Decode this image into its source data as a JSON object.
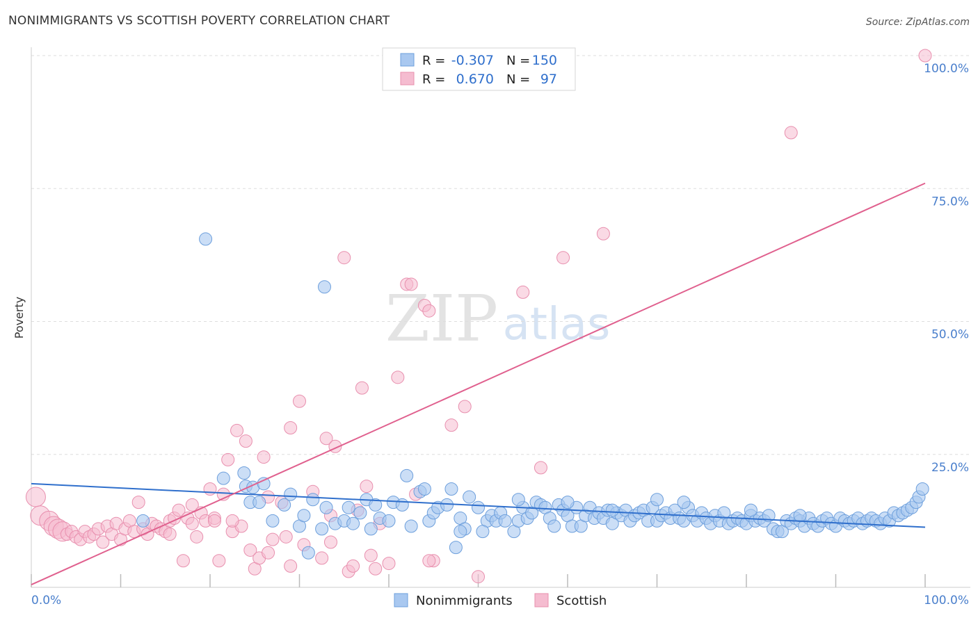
{
  "header": {
    "title": "NONIMMIGRANTS VS SCOTTISH POVERTY CORRELATION CHART",
    "source": "Source: ZipAtlas.com"
  },
  "watermark": {
    "zip": "ZIP",
    "atlas": "atlas"
  },
  "colors": {
    "blue_fill": "#a9c8f0",
    "blue_stroke": "#6d9fdc",
    "blue_line": "#2f6fcc",
    "pink_fill": "#f5bcd0",
    "pink_stroke": "#e88fae",
    "pink_line": "#e0608e",
    "axis_label": "#4a7fcc",
    "grid": "#dddddd"
  },
  "stats_legend": {
    "rows": [
      {
        "r_label": "R =",
        "r_value": "-0.307",
        "n_label": "N =",
        "n_value": "150"
      },
      {
        "r_label": "R =",
        "r_value": "0.670",
        "n_label": "N =",
        "n_value": "97"
      }
    ]
  },
  "chart_data": {
    "type": "scatter",
    "ylabel": "Poverty",
    "xlabel": "",
    "xlim": [
      0,
      100
    ],
    "ylim": [
      0,
      100
    ],
    "x_tick_labels": [
      "0.0%",
      "100.0%"
    ],
    "y_tick_labels": [
      {
        "value": 25,
        "label": "25.0%"
      },
      {
        "value": 50,
        "label": "50.0%"
      },
      {
        "value": 75,
        "label": "75.0%"
      },
      {
        "value": 100,
        "label": "100.0%"
      }
    ],
    "grid": true,
    "legend_position": "bottom-center",
    "series": [
      {
        "name": "Nonimmigrants",
        "color": "#a9c8f0",
        "trend": {
          "x": [
            0,
            100
          ],
          "y": [
            19.5,
            11.3
          ]
        },
        "points": [
          [
            19.5,
            65.5
          ],
          [
            32.8,
            56.5
          ],
          [
            21.5,
            20.5
          ],
          [
            23.8,
            21.5
          ],
          [
            24.0,
            19.0
          ],
          [
            24.5,
            16.0
          ],
          [
            24.8,
            18.8
          ],
          [
            25.5,
            16.0
          ],
          [
            26.0,
            19.5
          ],
          [
            27.0,
            12.5
          ],
          [
            28.3,
            15.5
          ],
          [
            29.0,
            17.5
          ],
          [
            30.0,
            11.5
          ],
          [
            30.5,
            13.5
          ],
          [
            31.5,
            16.5
          ],
          [
            32.5,
            11.0
          ],
          [
            33.0,
            15.0
          ],
          [
            34.0,
            12.0
          ],
          [
            35.0,
            12.5
          ],
          [
            35.5,
            15.0
          ],
          [
            36.0,
            12.0
          ],
          [
            36.8,
            14.0
          ],
          [
            37.5,
            16.5
          ],
          [
            38.0,
            11.0
          ],
          [
            38.5,
            15.5
          ],
          [
            39.0,
            13.0
          ],
          [
            40.0,
            12.5
          ],
          [
            40.5,
            16.0
          ],
          [
            41.5,
            15.5
          ],
          [
            42.0,
            21.0
          ],
          [
            42.5,
            11.5
          ],
          [
            43.5,
            18.0
          ],
          [
            44.0,
            18.5
          ],
          [
            44.5,
            12.5
          ],
          [
            45.0,
            14.0
          ],
          [
            45.5,
            15.0
          ],
          [
            46.5,
            15.5
          ],
          [
            47.0,
            18.5
          ],
          [
            47.5,
            7.5
          ],
          [
            48.0,
            13.0
          ],
          [
            48.5,
            11.0
          ],
          [
            49.0,
            17.0
          ],
          [
            50.0,
            15.0
          ],
          [
            51.0,
            12.5
          ],
          [
            51.5,
            13.5
          ],
          [
            52.0,
            12.5
          ],
          [
            52.5,
            14.0
          ],
          [
            53.0,
            12.5
          ],
          [
            54.0,
            10.5
          ],
          [
            54.5,
            12.5
          ],
          [
            55.0,
            15.0
          ],
          [
            55.5,
            13.0
          ],
          [
            56.0,
            14.0
          ],
          [
            56.5,
            16.0
          ],
          [
            57.0,
            15.5
          ],
          [
            57.5,
            15.0
          ],
          [
            58.0,
            13.0
          ],
          [
            58.5,
            11.5
          ],
          [
            59.0,
            15.5
          ],
          [
            59.5,
            14.5
          ],
          [
            60.0,
            13.5
          ],
          [
            60.5,
            11.5
          ],
          [
            61.0,
            15.0
          ],
          [
            61.5,
            11.5
          ],
          [
            62.0,
            13.5
          ],
          [
            62.5,
            15.0
          ],
          [
            63.0,
            13.0
          ],
          [
            63.5,
            14.0
          ],
          [
            64.0,
            13.0
          ],
          [
            64.5,
            14.5
          ],
          [
            65.0,
            12.0
          ],
          [
            65.5,
            14.0
          ],
          [
            66.0,
            13.5
          ],
          [
            66.5,
            14.5
          ],
          [
            67.0,
            12.5
          ],
          [
            67.5,
            13.5
          ],
          [
            68.0,
            14.0
          ],
          [
            68.5,
            14.5
          ],
          [
            69.0,
            12.5
          ],
          [
            69.5,
            15.0
          ],
          [
            70.0,
            12.5
          ],
          [
            70.5,
            13.5
          ],
          [
            71.0,
            14.0
          ],
          [
            71.5,
            13.0
          ],
          [
            72.0,
            14.5
          ],
          [
            72.5,
            13.0
          ],
          [
            73.0,
            12.5
          ],
          [
            73.5,
            15.0
          ],
          [
            74.0,
            13.5
          ],
          [
            74.5,
            12.5
          ],
          [
            75.0,
            14.0
          ],
          [
            75.5,
            13.0
          ],
          [
            76.0,
            12.0
          ],
          [
            76.5,
            13.5
          ],
          [
            77.0,
            12.5
          ],
          [
            77.5,
            14.0
          ],
          [
            78.0,
            12.0
          ],
          [
            78.5,
            12.5
          ],
          [
            79.0,
            13.0
          ],
          [
            79.5,
            12.5
          ],
          [
            80.0,
            12.0
          ],
          [
            80.5,
            13.5
          ],
          [
            81.0,
            12.5
          ],
          [
            81.5,
            13.0
          ],
          [
            82.0,
            12.5
          ],
          [
            82.5,
            13.5
          ],
          [
            83.0,
            11.0
          ],
          [
            83.5,
            10.5
          ],
          [
            84.0,
            10.5
          ],
          [
            84.5,
            12.5
          ],
          [
            85.0,
            12.0
          ],
          [
            85.5,
            13.0
          ],
          [
            86.0,
            12.5
          ],
          [
            86.5,
            11.5
          ],
          [
            87.0,
            13.0
          ],
          [
            87.5,
            12.0
          ],
          [
            88.0,
            11.5
          ],
          [
            88.5,
            12.5
          ],
          [
            89.0,
            13.0
          ],
          [
            89.5,
            12.0
          ],
          [
            90.0,
            11.5
          ],
          [
            90.5,
            13.0
          ],
          [
            91.0,
            12.5
          ],
          [
            91.5,
            12.0
          ],
          [
            92.0,
            12.5
          ],
          [
            92.5,
            13.0
          ],
          [
            93.0,
            12.0
          ],
          [
            93.5,
            12.5
          ],
          [
            94.0,
            13.0
          ],
          [
            94.5,
            12.5
          ],
          [
            95.0,
            12.0
          ],
          [
            95.5,
            13.0
          ],
          [
            96.0,
            12.5
          ],
          [
            96.5,
            14.0
          ],
          [
            97.0,
            13.5
          ],
          [
            97.5,
            14.0
          ],
          [
            98.0,
            14.5
          ],
          [
            98.5,
            15.0
          ],
          [
            99.0,
            16.0
          ],
          [
            99.3,
            17.0
          ],
          [
            99.7,
            18.5
          ],
          [
            12.5,
            12.5
          ],
          [
            31.0,
            6.5
          ],
          [
            50.5,
            10.5
          ],
          [
            65.0,
            14.5
          ],
          [
            80.5,
            14.5
          ],
          [
            86.0,
            13.5
          ],
          [
            70.0,
            16.5
          ],
          [
            73.0,
            16.0
          ],
          [
            54.5,
            16.5
          ],
          [
            60.0,
            16.0
          ],
          [
            48.0,
            10.5
          ]
        ]
      },
      {
        "name": "Scottish",
        "color": "#f5bcd0",
        "trend": {
          "x": [
            0,
            100
          ],
          "y": [
            0.5,
            76.0
          ]
        },
        "points": [
          [
            0.5,
            17.0
          ],
          [
            1.0,
            13.5
          ],
          [
            2.0,
            12.5
          ],
          [
            2.5,
            11.5
          ],
          [
            3.0,
            11.0
          ],
          [
            3.5,
            10.5
          ],
          [
            4.0,
            10.0
          ],
          [
            4.5,
            10.5
          ],
          [
            5.0,
            9.5
          ],
          [
            5.5,
            9.0
          ],
          [
            6.0,
            10.5
          ],
          [
            6.5,
            9.5
          ],
          [
            7.0,
            10.0
          ],
          [
            7.5,
            11.0
          ],
          [
            8.0,
            8.5
          ],
          [
            8.5,
            11.5
          ],
          [
            9.0,
            10.0
          ],
          [
            9.5,
            12.0
          ],
          [
            10.0,
            9.0
          ],
          [
            10.5,
            11.0
          ],
          [
            11.0,
            12.5
          ],
          [
            11.5,
            10.5
          ],
          [
            12.0,
            16.0
          ],
          [
            12.5,
            11.0
          ],
          [
            13.0,
            10.0
          ],
          [
            13.5,
            12.0
          ],
          [
            14.0,
            11.5
          ],
          [
            14.5,
            11.0
          ],
          [
            15.0,
            10.5
          ],
          [
            15.5,
            12.5
          ],
          [
            16.0,
            13.0
          ],
          [
            16.5,
            14.5
          ],
          [
            17.0,
            5.0
          ],
          [
            17.5,
            13.0
          ],
          [
            18.0,
            15.5
          ],
          [
            18.5,
            9.5
          ],
          [
            19.0,
            14.0
          ],
          [
            19.5,
            12.5
          ],
          [
            20.0,
            18.5
          ],
          [
            20.5,
            13.0
          ],
          [
            21.0,
            5.0
          ],
          [
            21.5,
            17.5
          ],
          [
            22.0,
            24.0
          ],
          [
            22.5,
            10.5
          ],
          [
            23.0,
            29.5
          ],
          [
            23.5,
            11.5
          ],
          [
            24.0,
            27.5
          ],
          [
            24.5,
            7.0
          ],
          [
            25.0,
            3.5
          ],
          [
            25.5,
            5.5
          ],
          [
            26.0,
            24.5
          ],
          [
            26.5,
            17.0
          ],
          [
            27.0,
            9.0
          ],
          [
            28.0,
            16.0
          ],
          [
            28.5,
            9.5
          ],
          [
            29.0,
            30.0
          ],
          [
            30.0,
            35.0
          ],
          [
            30.5,
            8.0
          ],
          [
            31.5,
            18.0
          ],
          [
            32.5,
            5.5
          ],
          [
            33.0,
            28.0
          ],
          [
            33.5,
            8.5
          ],
          [
            34.0,
            26.5
          ],
          [
            35.0,
            62.0
          ],
          [
            35.5,
            3.0
          ],
          [
            36.0,
            4.0
          ],
          [
            37.0,
            37.5
          ],
          [
            37.5,
            19.0
          ],
          [
            38.0,
            6.0
          ],
          [
            39.0,
            12.0
          ],
          [
            40.0,
            4.5
          ],
          [
            41.0,
            39.5
          ],
          [
            42.0,
            57.0
          ],
          [
            42.5,
            57.0
          ],
          [
            43.0,
            17.5
          ],
          [
            44.0,
            53.0
          ],
          [
            44.5,
            52.0
          ],
          [
            45.0,
            5.0
          ],
          [
            47.0,
            30.5
          ],
          [
            48.5,
            34.0
          ],
          [
            50.0,
            2.0
          ],
          [
            55.0,
            55.5
          ],
          [
            57.0,
            22.5
          ],
          [
            59.5,
            62.0
          ],
          [
            64.0,
            66.5
          ],
          [
            85.0,
            85.5
          ],
          [
            100.0,
            100.0
          ],
          [
            29.0,
            4.0
          ],
          [
            38.5,
            3.5
          ],
          [
            44.5,
            5.0
          ],
          [
            20.5,
            12.5
          ],
          [
            18.0,
            12.0
          ],
          [
            26.5,
            6.5
          ],
          [
            15.5,
            10.0
          ],
          [
            33.5,
            13.5
          ],
          [
            36.5,
            14.5
          ],
          [
            22.5,
            12.5
          ]
        ]
      }
    ]
  },
  "bottom_legend": {
    "items": [
      {
        "label": "Nonimmigrants"
      },
      {
        "label": "Scottish"
      }
    ]
  }
}
